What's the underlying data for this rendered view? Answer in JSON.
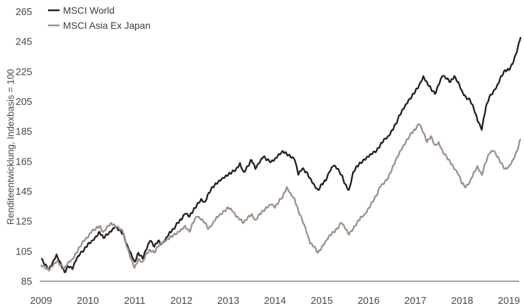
{
  "chart_data": {
    "type": "line",
    "title": "",
    "xlabel": "",
    "ylabel": "Renditeentwicklung, Indexbasis = 100",
    "ylim": [
      85,
      265
    ],
    "xlim": [
      2009.0,
      2019.25
    ],
    "yticks": [
      85,
      105,
      125,
      145,
      165,
      185,
      205,
      225,
      245,
      265
    ],
    "xticks": [
      "2009",
      "2010",
      "2011",
      "2012",
      "2013",
      "2014",
      "2015",
      "2016",
      "2017",
      "2018",
      "2019"
    ],
    "grid": false,
    "legend_position": "top-left",
    "x": [
      2009.0,
      2009.08,
      2009.17,
      2009.25,
      2009.33,
      2009.42,
      2009.5,
      2009.58,
      2009.67,
      2009.75,
      2009.83,
      2009.92,
      2010.0,
      2010.08,
      2010.17,
      2010.25,
      2010.33,
      2010.42,
      2010.5,
      2010.58,
      2010.67,
      2010.75,
      2010.83,
      2010.92,
      2011.0,
      2011.08,
      2011.17,
      2011.25,
      2011.33,
      2011.42,
      2011.5,
      2011.58,
      2011.67,
      2011.75,
      2011.83,
      2011.92,
      2012.0,
      2012.08,
      2012.17,
      2012.25,
      2012.33,
      2012.42,
      2012.5,
      2012.58,
      2012.67,
      2012.75,
      2012.83,
      2012.92,
      2013.0,
      2013.08,
      2013.17,
      2013.25,
      2013.33,
      2013.42,
      2013.5,
      2013.58,
      2013.67,
      2013.75,
      2013.83,
      2013.92,
      2014.0,
      2014.08,
      2014.17,
      2014.25,
      2014.33,
      2014.42,
      2014.5,
      2014.58,
      2014.67,
      2014.75,
      2014.83,
      2014.92,
      2015.0,
      2015.08,
      2015.17,
      2015.25,
      2015.33,
      2015.42,
      2015.5,
      2015.58,
      2015.67,
      2015.75,
      2015.83,
      2015.92,
      2016.0,
      2016.08,
      2016.17,
      2016.25,
      2016.33,
      2016.42,
      2016.5,
      2016.58,
      2016.67,
      2016.75,
      2016.83,
      2016.92,
      2017.0,
      2017.08,
      2017.17,
      2017.25,
      2017.33,
      2017.42,
      2017.5,
      2017.58,
      2017.67,
      2017.75,
      2017.83,
      2017.92,
      2018.0,
      2018.08,
      2018.17,
      2018.25,
      2018.33,
      2018.42,
      2018.5,
      2018.58,
      2018.67,
      2018.75,
      2018.83,
      2018.92,
      2019.0,
      2019.08,
      2019.17,
      2019.25
    ],
    "series": [
      {
        "name": "MSCI World",
        "color": "#231f20",
        "values": [
          100,
          96,
          93,
          98,
          103,
          97,
          91,
          95,
          93,
          99,
          103,
          106,
          110,
          112,
          115,
          118,
          114,
          116,
          118,
          121,
          119,
          117,
          110,
          104,
          98,
          104,
          100,
          106,
          112,
          108,
          112,
          110,
          114,
          118,
          120,
          124,
          126,
          130,
          128,
          132,
          136,
          140,
          138,
          144,
          148,
          150,
          152,
          154,
          156,
          158,
          160,
          164,
          158,
          162,
          166,
          160,
          164,
          168,
          166,
          165,
          167,
          170,
          172,
          170,
          168,
          166,
          156,
          160,
          158,
          154,
          150,
          146,
          150,
          152,
          158,
          162,
          160,
          156,
          150,
          146,
          158,
          162,
          164,
          166,
          168,
          170,
          172,
          176,
          180,
          182,
          186,
          190,
          196,
          200,
          204,
          208,
          212,
          216,
          222,
          218,
          214,
          210,
          216,
          222,
          220,
          218,
          222,
          218,
          212,
          208,
          206,
          200,
          192,
          186,
          200,
          208,
          212,
          216,
          222,
          226,
          226,
          230,
          238,
          248
        ]
      },
      {
        "name": "MSCI Asia Ex Japan",
        "color": "#9e9088",
        "values": [
          96,
          94,
          92,
          95,
          98,
          96,
          94,
          98,
          100,
          104,
          108,
          112,
          114,
          118,
          120,
          122,
          118,
          122,
          124,
          122,
          120,
          118,
          108,
          100,
          94,
          100,
          98,
          104,
          106,
          104,
          108,
          110,
          112,
          114,
          116,
          118,
          120,
          122,
          118,
          124,
          128,
          126,
          124,
          120,
          124,
          128,
          130,
          132,
          134,
          132,
          128,
          126,
          124,
          128,
          130,
          126,
          130,
          132,
          134,
          136,
          134,
          138,
          142,
          148,
          144,
          140,
          132,
          126,
          118,
          110,
          108,
          104,
          108,
          112,
          116,
          118,
          120,
          124,
          120,
          116,
          120,
          124,
          128,
          130,
          134,
          138,
          142,
          148,
          150,
          154,
          160,
          166,
          172,
          176,
          180,
          184,
          186,
          190,
          184,
          178,
          182,
          176,
          178,
          172,
          168,
          164,
          160,
          156,
          150,
          148,
          152,
          158,
          162,
          156,
          164,
          170,
          172,
          168,
          164,
          160,
          162,
          166,
          172,
          180
        ]
      }
    ]
  },
  "legend": {
    "items": [
      {
        "label": "MSCI World",
        "color": "#231f20"
      },
      {
        "label": "MSCI Asia Ex Japan",
        "color": "#9e9088"
      }
    ]
  },
  "axis": {
    "y_title": "Renditeentwicklung, Indexbasis = 100",
    "baseline_color": "#6b6b6b"
  }
}
